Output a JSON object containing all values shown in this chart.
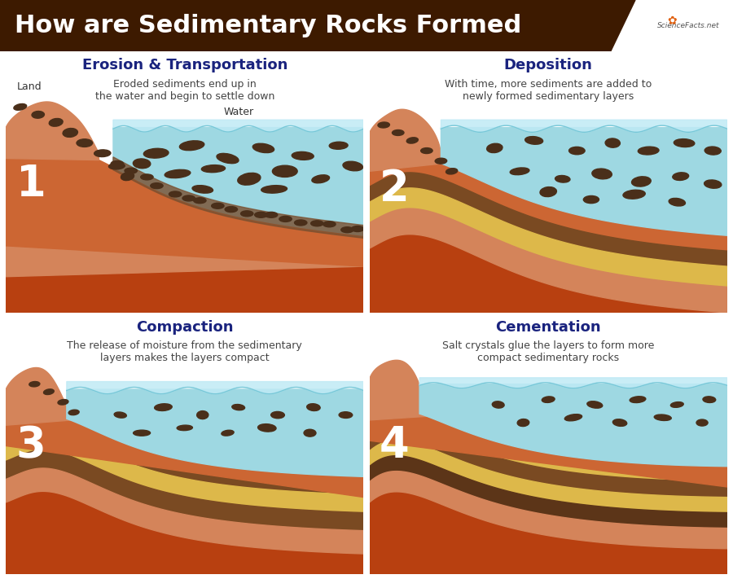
{
  "title": "How are Sedimentary Rocks Formed",
  "title_bg_color": "#3d1a00",
  "title_text_color": "#ffffff",
  "background_color": "#ffffff",
  "panels": [
    {
      "number": "1",
      "title": "Erosion & Transportation",
      "subtitle": "Eroded sediments end up in\nthe water and begin to settle down",
      "label_land": "Land",
      "label_water": "Water",
      "deep_base_color": "#b84010",
      "land_main_color": "#cc6633",
      "land_light_color": "#d4845a",
      "rock_color": "#4a2f1a",
      "water_color": "#9ed8e2",
      "water_light_color": "#c0eaf5",
      "sediment_layer_color": "#7a5030"
    },
    {
      "number": "2",
      "title": "Deposition",
      "subtitle": "With time, more sediments are added to\nnewly formed sedimentary layers",
      "deep_base_color": "#b84010",
      "land_main_color": "#cc6633",
      "land_light_color": "#d4845a",
      "rock_color": "#4a2f1a",
      "water_color": "#9ed8e2",
      "water_light_color": "#c0eaf5",
      "layer_sand": "#ddb84a",
      "layer_brown_dark": "#7a4a22",
      "layer_peach": "#d4845a"
    },
    {
      "number": "3",
      "title": "Compaction",
      "subtitle": "The release of moisture from the sedimentary\nlayers makes the layers compact",
      "deep_base_color": "#b84010",
      "land_main_color": "#cc6633",
      "land_light_color": "#d4845a",
      "rock_color": "#4a2f1a",
      "water_color": "#9ed8e2",
      "water_light_color": "#c0eaf5",
      "layer_sand": "#ddb84a",
      "layer_brown_dark": "#7a4a22",
      "layer_peach": "#d4845a"
    },
    {
      "number": "4",
      "title": "Cementation",
      "subtitle": "Salt crystals glue the layers to form more\ncompact sedimentary rocks",
      "deep_base_color": "#b84010",
      "land_main_color": "#cc6633",
      "land_light_color": "#d4845a",
      "rock_color": "#4a2f1a",
      "water_color": "#9ed8e2",
      "water_light_color": "#c0eaf5",
      "layer_sand": "#ddb84a",
      "layer_brown_dark": "#7a4a22",
      "layer_peach": "#d4845a",
      "layer_dk2": "#5c3518"
    }
  ],
  "title_fontsize": 22,
  "panel_title_fontsize": 13,
  "subtitle_fontsize": 9,
  "number_fontsize": 38,
  "label_fontsize": 9,
  "title_color": "#1a237e",
  "subtitle_color": "#444444",
  "number_color": "#ffffff",
  "label_color": "#333333"
}
